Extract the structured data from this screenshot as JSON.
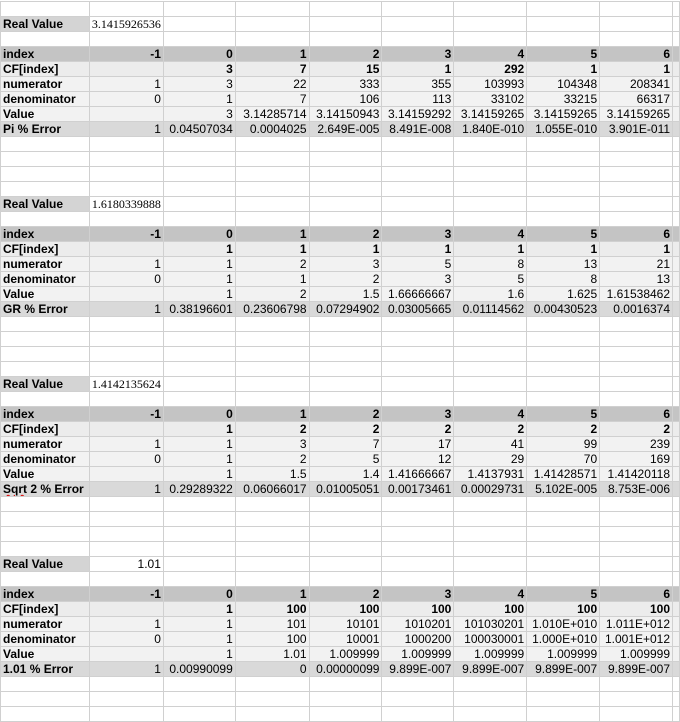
{
  "real_value_label": "Real Value",
  "row_labels": [
    "index",
    "CF[index]",
    "numerator",
    "denominator",
    "Value"
  ],
  "blocks": [
    {
      "real_value": "3.1415926536",
      "index": [
        "-1",
        "0",
        "1",
        "2",
        "3",
        "4",
        "5",
        "6"
      ],
      "cf": [
        "",
        "3",
        "7",
        "15",
        "1",
        "292",
        "1",
        "1"
      ],
      "numerator": [
        "1",
        "3",
        "22",
        "333",
        "355",
        "103993",
        "104348",
        "208341"
      ],
      "denominator": [
        "0",
        "1",
        "7",
        "106",
        "113",
        "33102",
        "33215",
        "66317"
      ],
      "value": [
        "",
        "3",
        "3.14285714",
        "3.14150943",
        "3.14159292",
        "3.14159265",
        "3.14159265",
        "3.14159265"
      ],
      "error_label": "Pi % Error",
      "error": [
        "1",
        "0.04507034",
        "0.0004025",
        "2.649E-005",
        "8.491E-008",
        "1.840E-010",
        "1.055E-010",
        "3.901E-011"
      ]
    },
    {
      "real_value": "1.6180339888",
      "index": [
        "-1",
        "0",
        "1",
        "2",
        "3",
        "4",
        "5",
        "6"
      ],
      "cf": [
        "",
        "1",
        "1",
        "1",
        "1",
        "1",
        "1",
        "1"
      ],
      "numerator": [
        "1",
        "1",
        "2",
        "3",
        "5",
        "8",
        "13",
        "21"
      ],
      "denominator": [
        "0",
        "1",
        "1",
        "2",
        "3",
        "5",
        "8",
        "13"
      ],
      "value": [
        "",
        "1",
        "2",
        "1.5",
        "1.66666667",
        "1.6",
        "1.625",
        "1.61538462"
      ],
      "error_label": "GR % Error",
      "error": [
        "1",
        "0.38196601",
        "0.23606798",
        "0.07294902",
        "0.03005665",
        "0.01114562",
        "0.00430523",
        "0.0016374"
      ]
    },
    {
      "real_value": "1.4142135624",
      "index": [
        "-1",
        "0",
        "1",
        "2",
        "3",
        "4",
        "5",
        "6"
      ],
      "cf": [
        "",
        "1",
        "2",
        "2",
        "2",
        "2",
        "2",
        "2"
      ],
      "numerator": [
        "1",
        "1",
        "3",
        "7",
        "17",
        "41",
        "99",
        "239"
      ],
      "denominator": [
        "0",
        "1",
        "2",
        "5",
        "12",
        "29",
        "70",
        "169"
      ],
      "value": [
        "",
        "1",
        "1.5",
        "1.4",
        "1.41666667",
        "1.4137931",
        "1.41428571",
        "1.41420118"
      ],
      "error_label": "Sqrt 2 % Error",
      "error": [
        "1",
        "0.29289322",
        "0.06066017",
        "0.01005051",
        "0.00173461",
        "0.00029731",
        "5.102E-005",
        "8.753E-006"
      ]
    },
    {
      "real_value": "1.01",
      "index": [
        "-1",
        "0",
        "1",
        "2",
        "3",
        "4",
        "5",
        "6"
      ],
      "cf": [
        "",
        "1",
        "100",
        "100",
        "100",
        "100",
        "100",
        "100"
      ],
      "numerator": [
        "1",
        "1",
        "101",
        "10101",
        "1010201",
        "101030201",
        "1.010E+010",
        "1.011E+012"
      ],
      "denominator": [
        "0",
        "1",
        "100",
        "10001",
        "1000200",
        "100030001",
        "1.000E+010",
        "1.001E+012"
      ],
      "value": [
        "",
        "1",
        "1.01",
        "1.009999",
        "1.009999",
        "1.009999",
        "1.009999",
        "1.009999"
      ],
      "error_label": "1.01 % Error",
      "error": [
        "1",
        "0.00990099",
        "0",
        "0.00000099",
        "9.899E-007",
        "9.899E-007",
        "9.899E-007",
        "9.899E-007"
      ]
    }
  ]
}
